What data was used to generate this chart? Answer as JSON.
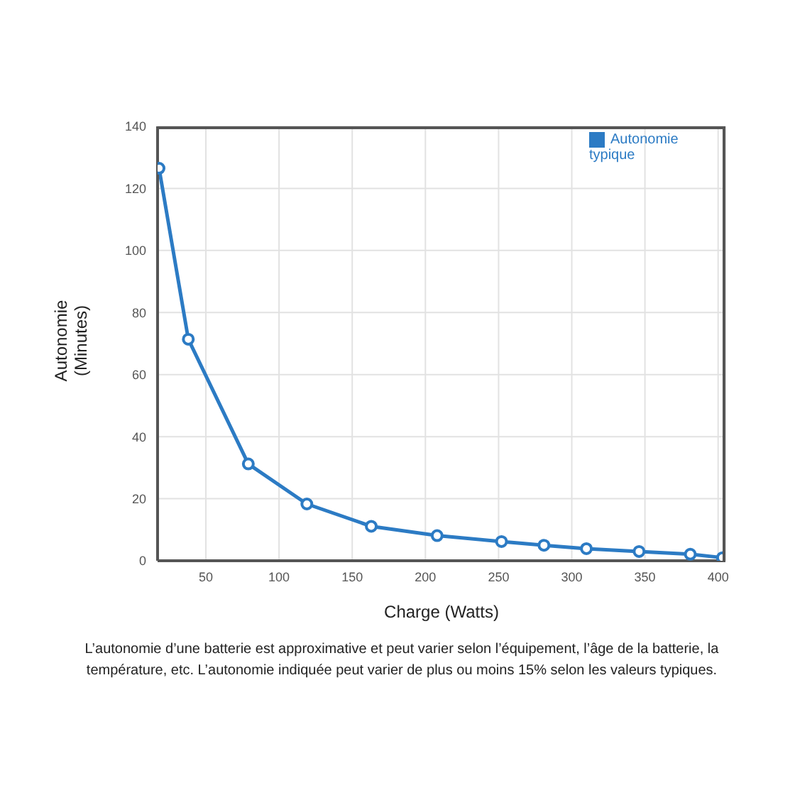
{
  "chart_data": {
    "type": "line",
    "xlabel": "Charge (Watts)",
    "ylabel": "Autonomie (Minutes)",
    "x": [
      18,
      38,
      79,
      119,
      163,
      208,
      252,
      281,
      310,
      346,
      381,
      403
    ],
    "series": [
      {
        "name": "Autonomie typique",
        "color": "#2c7bc4",
        "values": [
          126.5,
          71.4,
          31.2,
          18.3,
          11.1,
          8.1,
          6.2,
          5,
          3.9,
          3,
          2.1,
          1
        ]
      }
    ],
    "xlim": [
      17,
      405
    ],
    "xticks": [
      50,
      100,
      150,
      200,
      250,
      300,
      350,
      400
    ],
    "ylim": [
      0,
      140
    ],
    "yticks": [
      0,
      20,
      40,
      60,
      80,
      100,
      120,
      140
    ],
    "grid": true,
    "legend": "top right",
    "marker": "circle",
    "line_style": "solid",
    "annotations": [
      "L’autonomie d’une batterie est approximative et peut varier selon l’équipement, l’âge de la batterie, la température, etc. L’autonomie indiquée peut varier de plus ou moins 15% selon les valeurs typiques."
    ]
  }
}
